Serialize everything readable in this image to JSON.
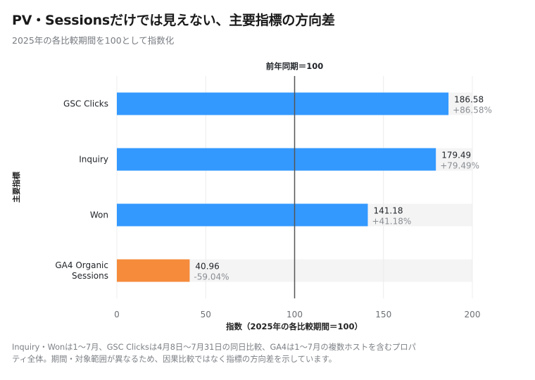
{
  "header": {
    "title": "PV・Sessionsだけでは見えない、主要指標の方向差",
    "subtitle": "2025年の各比較期間を100として指数化"
  },
  "footnote": "Inquiry・Wonは1〜7月、GSC Clicksは4月8日〜7月31日の同日比較、GA4は1〜7月の複数ホストを含むプロパティ全体。期間・対象範囲が異なるため、因果比較ではなく指標の方向差を示しています。",
  "chart_data": {
    "type": "bar",
    "orientation": "horizontal",
    "categories": [
      "GSC Clicks",
      "Inquiry",
      "Won",
      "GA4 Organic Sessions"
    ],
    "category_lines": [
      [
        "GSC Clicks"
      ],
      [
        "Inquiry"
      ],
      [
        "Won"
      ],
      [
        "GA4 Organic",
        "Sessions"
      ]
    ],
    "values": [
      186.58,
      179.49,
      141.18,
      40.96
    ],
    "value_labels": [
      "186.58",
      "179.49",
      "141.18",
      "40.96"
    ],
    "change_labels": [
      "+86.58%",
      "+79.49%",
      "+41.18%",
      "-59.04%"
    ],
    "bar_colors": [
      "#3399ff",
      "#3399ff",
      "#3399ff",
      "#f58b3b"
    ],
    "xlabel": "指数（2025年の各比較期間＝100）",
    "ylabel": "主要指標",
    "xlim": [
      0,
      200
    ],
    "xticks": [
      0,
      50,
      100,
      150,
      200
    ],
    "reference_line": {
      "value": 100,
      "label": "前年同期＝100"
    },
    "grid": true
  }
}
